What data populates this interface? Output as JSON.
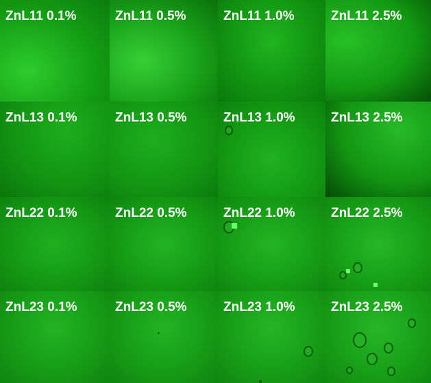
{
  "tiles": [
    [
      "ZnL11 0.1%",
      "ZnL11 0.5%",
      "ZnL11 1.0%",
      "ZnL11 2.5%"
    ],
    [
      "ZnL13 0.1%",
      "ZnL13 0.5%",
      "ZnL13 1.0%",
      "ZnL13 2.5%"
    ],
    [
      "ZnL22 0.1%",
      "ZnL22 0.5%",
      "ZnL22 1.0%",
      "ZnL22 2.5%"
    ],
    [
      "ZnL23 0.1%",
      "ZnL23 0.5%",
      "ZnL23 1.0%",
      "ZnL23 2.5%"
    ]
  ]
}
